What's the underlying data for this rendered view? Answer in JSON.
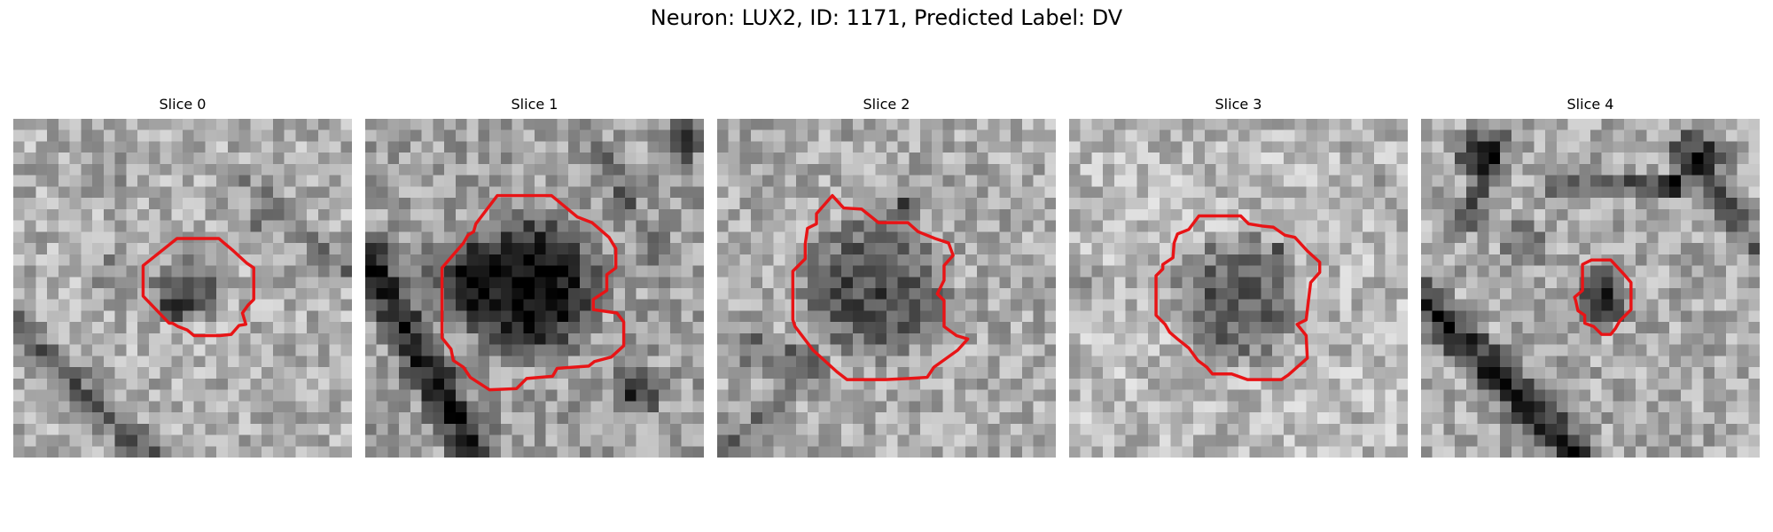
{
  "figure_title": "Neuron: LUX2, ID: 1171, Predicted Label: DV",
  "contour_color": "#e81416",
  "panels": [
    {
      "title": "Slice 0",
      "contour_icon": "neuron-outline"
    },
    {
      "title": "Slice 1",
      "contour_icon": "neuron-outline"
    },
    {
      "title": "Slice 2",
      "contour_icon": "neuron-outline"
    },
    {
      "title": "Slice 3",
      "contour_icon": "neuron-outline"
    },
    {
      "title": "Slice 4",
      "contour_icon": "neuron-outline"
    }
  ]
}
